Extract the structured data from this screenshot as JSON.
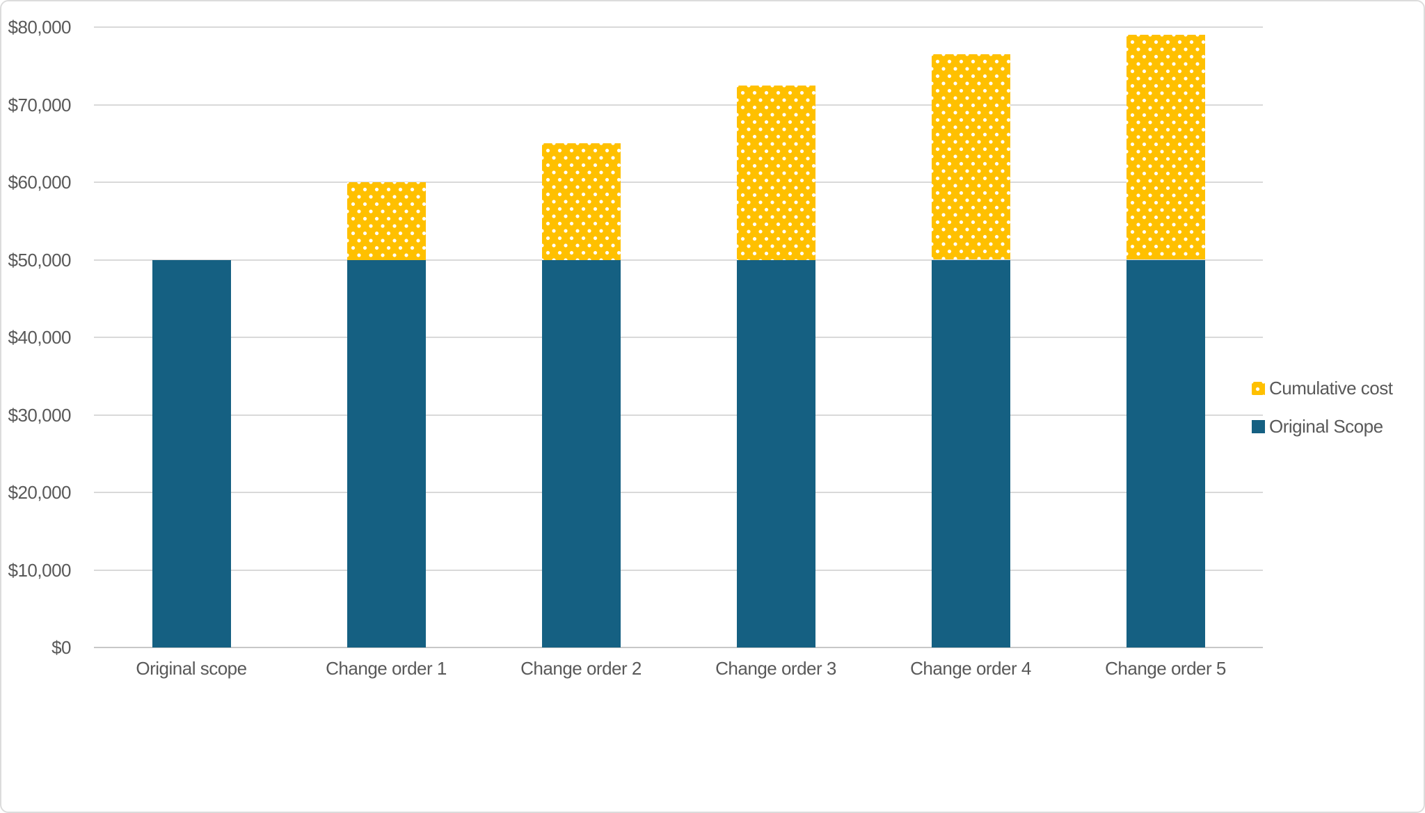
{
  "chart_data": {
    "type": "bar",
    "stacked": true,
    "title": "",
    "xlabel": "",
    "ylabel": "",
    "categories": [
      "Original scope",
      "Change order 1",
      "Change order 2",
      "Change order 3",
      "Change order 4",
      "Change order 5"
    ],
    "series": [
      {
        "name": "Original Scope",
        "color": "#156082",
        "pattern": "solid",
        "values": [
          50000,
          50000,
          50000,
          50000,
          50000,
          50000
        ]
      },
      {
        "name": "Cumulative cost",
        "color": "#FFC000",
        "pattern": "white-dots",
        "values": [
          0,
          10000,
          15000,
          22500,
          26500,
          29000
        ]
      }
    ],
    "stack_totals": [
      50000,
      60000,
      65000,
      72500,
      76500,
      79000
    ],
    "ylim": [
      0,
      80000
    ],
    "y_tick_interval": 10000,
    "y_tick_labels": [
      "$0",
      "$10,000",
      "$20,000",
      "$30,000",
      "$40,000",
      "$50,000",
      "$60,000",
      "$70,000",
      "$80,000"
    ],
    "grid": "horizontal-only",
    "legend": {
      "position": "middle-right",
      "entries": [
        {
          "label": "Cumulative cost",
          "series": "Cumulative cost"
        },
        {
          "label": "Original Scope",
          "series": "Original Scope"
        }
      ]
    }
  },
  "colors": {
    "teal_bar": "#156082",
    "gold_bar": "#FFC000",
    "pattern_dot": "#FFFFFF",
    "gridline": "#D9D9D9",
    "axis_line": "#C7C7C7",
    "label_text": "#595959",
    "canvas_border": "#DCDCDC",
    "background": "#FFFFFF"
  }
}
